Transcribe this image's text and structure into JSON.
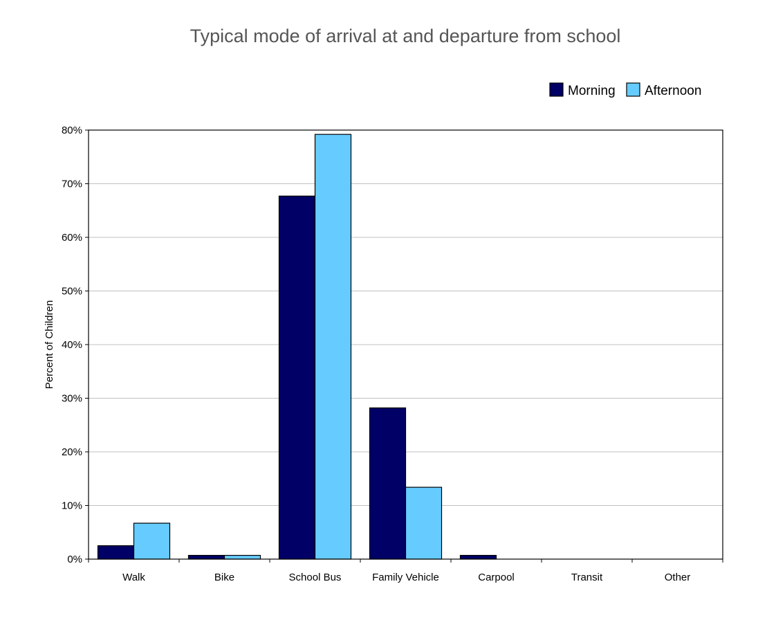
{
  "chart_data": {
    "type": "bar",
    "title": "Typical mode of arrival at and departure from school",
    "xlabel": "",
    "ylabel": "Percent of Children",
    "categories": [
      "Walk",
      "Bike",
      "School Bus",
      "Family Vehicle",
      "Carpool",
      "Transit",
      "Other"
    ],
    "series": [
      {
        "name": "Morning",
        "color": "#000066",
        "values": [
          2.5,
          0.7,
          67.7,
          28.2,
          0.7,
          0,
          0
        ]
      },
      {
        "name": "Afternoon",
        "color": "#66ccff",
        "values": [
          6.7,
          0.7,
          79.2,
          13.4,
          0,
          0,
          0
        ]
      }
    ],
    "ylim": [
      0,
      80
    ],
    "yticks": [
      0,
      10,
      20,
      30,
      40,
      50,
      60,
      70,
      80
    ],
    "ytick_labels": [
      "0%",
      "10%",
      "20%",
      "30%",
      "40%",
      "50%",
      "60%",
      "70%",
      "80%"
    ],
    "grid": true,
    "legend_position": "top-right"
  }
}
